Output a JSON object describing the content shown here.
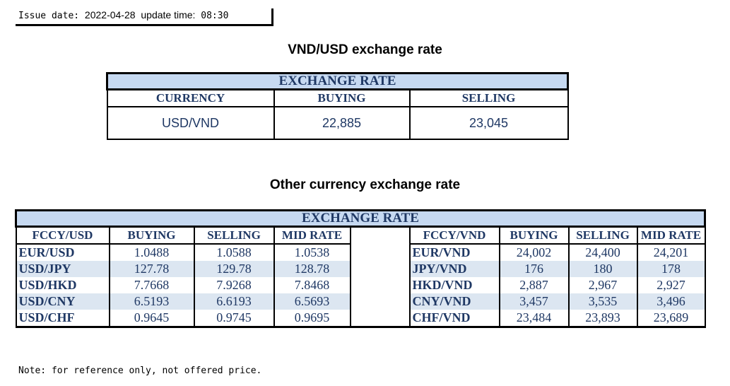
{
  "issue": {
    "date_label": "Issue date:",
    "date": "2022-04-28",
    "time_label": "update time:",
    "time": "08:30"
  },
  "vnd_usd": {
    "title": "VND/USD exchange rate",
    "band": "EXCHANGE RATE",
    "headers": [
      "CURRENCY",
      "BUYING",
      "SELLING"
    ],
    "row": [
      "USD/VND",
      "22,885",
      "23,045"
    ]
  },
  "other": {
    "title": "Other currency exchange rate",
    "band": "EXCHANGE  RATE",
    "left_headers": [
      "FCCY/USD",
      "BUYING",
      "SELLING",
      "MID RATE"
    ],
    "right_headers": [
      "FCCY/VND",
      "BUYING",
      "SELLING",
      "MID RATE"
    ],
    "rows": [
      {
        "l": [
          "EUR/USD",
          "1.0488",
          "1.0588",
          "1.0538"
        ],
        "r": [
          "EUR/VND",
          "24,002",
          "24,400",
          "24,201"
        ]
      },
      {
        "l": [
          "USD/JPY",
          "127.78",
          "129.78",
          "128.78"
        ],
        "r": [
          "JPY/VND",
          "176",
          "180",
          "178"
        ]
      },
      {
        "l": [
          "USD/HKD",
          "7.7668",
          "7.9268",
          "7.8468"
        ],
        "r": [
          "HKD/VND",
          "2,887",
          "2,967",
          "2,927"
        ]
      },
      {
        "l": [
          "USD/CNY",
          "6.5193",
          "6.6193",
          "6.5693"
        ],
        "r": [
          "CNY/VND",
          "3,457",
          "3,535",
          "3,496"
        ]
      },
      {
        "l": [
          "USD/CHF",
          "0.9645",
          "0.9745",
          "0.9695"
        ],
        "r": [
          "CHF/VND",
          "23,484",
          "23,893",
          "23,689"
        ]
      }
    ]
  },
  "note": "Note: for reference only, not offered price."
}
